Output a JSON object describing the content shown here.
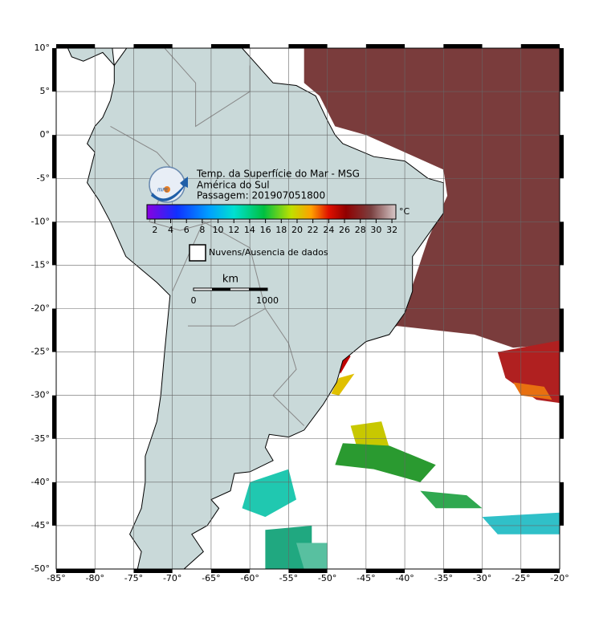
{
  "header": {
    "logo": "INPE",
    "title": "Temp. da Superfície do Mar - MSG",
    "region": "América do Sul",
    "pass": "Passagem: 201907051800"
  },
  "colorbar": {
    "unit": "°C",
    "range": [
      1,
      32.5
    ],
    "ticks": [
      2,
      4,
      6,
      8,
      10,
      12,
      14,
      16,
      18,
      20,
      22,
      24,
      26,
      28,
      30,
      32
    ]
  },
  "legend": {
    "no_data": "Nuvens/Ausencia de dados"
  },
  "scale_bar": {
    "unit": "km",
    "labels": [
      "0",
      "1000"
    ]
  },
  "map": {
    "lonlim": [
      -85,
      -20
    ],
    "latlim": [
      -50,
      10
    ],
    "lon_ticks": [
      {
        "value": -85,
        "label": "-85°"
      },
      {
        "value": -80,
        "label": "-80°"
      },
      {
        "value": -75,
        "label": "-75°"
      },
      {
        "value": -70,
        "label": "-70°"
      },
      {
        "value": -65,
        "label": "-65°"
      },
      {
        "value": -60,
        "label": "-60°"
      },
      {
        "value": -55,
        "label": "-55°"
      },
      {
        "value": -50,
        "label": "-50°"
      },
      {
        "value": -45,
        "label": "-45°"
      },
      {
        "value": -40,
        "label": "-40°"
      },
      {
        "value": -35,
        "label": "-35°"
      },
      {
        "value": -30,
        "label": "-30°"
      },
      {
        "value": -25,
        "label": "-25°"
      },
      {
        "value": -20,
        "label": "-20°"
      }
    ],
    "lat_ticks": [
      {
        "value": 10,
        "label": "10°"
      },
      {
        "value": 5,
        "label": "5°"
      },
      {
        "value": 0,
        "label": "0°"
      },
      {
        "value": -5,
        "label": "-5°"
      },
      {
        "value": -10,
        "label": "-10°"
      },
      {
        "value": -15,
        "label": "-15°"
      },
      {
        "value": -20,
        "label": "-20°"
      },
      {
        "value": -25,
        "label": "-25°"
      },
      {
        "value": -30,
        "label": "-30°"
      },
      {
        "value": -35,
        "label": "-35°"
      },
      {
        "value": -40,
        "label": "-40°"
      },
      {
        "value": -45,
        "label": "-45°"
      },
      {
        "value": -50,
        "label": "-50°"
      }
    ]
  }
}
